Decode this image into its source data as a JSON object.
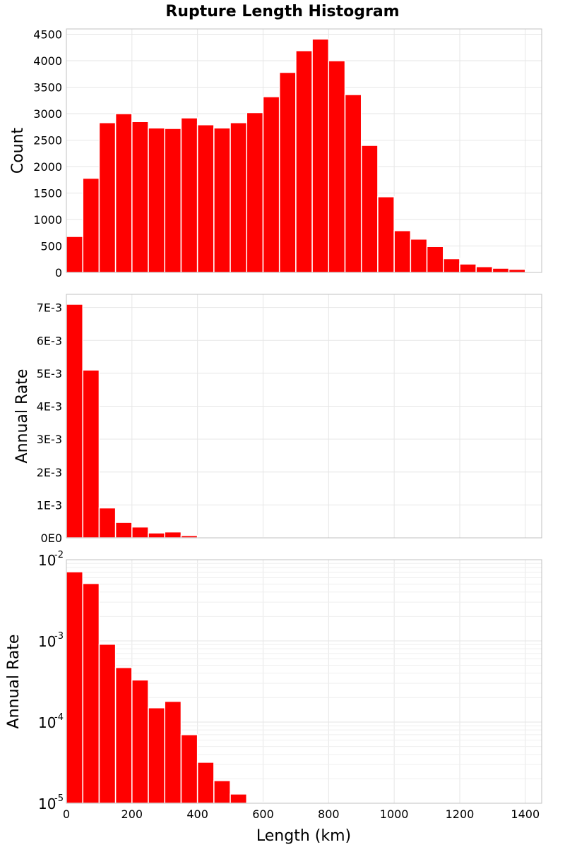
{
  "chart_data": [
    {
      "type": "bar",
      "scale": "linear",
      "title": "Rupture Length Histogram",
      "xlabel": "Length (km)",
      "ylabel": "Count",
      "bin_width": 50,
      "bin_starts": [
        0,
        50,
        100,
        150,
        200,
        250,
        300,
        350,
        400,
        450,
        500,
        550,
        600,
        650,
        700,
        750,
        800,
        850,
        900,
        950,
        1000,
        1050,
        1100,
        1150,
        1200,
        1250,
        1300,
        1350,
        1400
      ],
      "values": [
        680,
        1780,
        2830,
        3000,
        2850,
        2730,
        2720,
        2920,
        2790,
        2730,
        2830,
        3020,
        3320,
        3780,
        4190,
        4410,
        4000,
        3360,
        2400,
        1430,
        790,
        630,
        490,
        260,
        160,
        110,
        80,
        60,
        15
      ],
      "bar_color": "#ff0000",
      "xlim": [
        0,
        1450
      ],
      "ylim": [
        0,
        4600
      ],
      "xticks": [
        0,
        200,
        400,
        600,
        800,
        1000,
        1200,
        1400
      ],
      "yticks": [
        0,
        500,
        1000,
        1500,
        2000,
        2500,
        3000,
        3500,
        4000,
        4500
      ],
      "ytick_labels": [
        "0",
        "500",
        "1000",
        "1500",
        "2000",
        "2500",
        "3000",
        "3500",
        "4000",
        "4500"
      ],
      "grid": true
    },
    {
      "type": "bar",
      "scale": "linear",
      "xlabel": "Length (km)",
      "ylabel": "Annual Rate",
      "bin_width": 50,
      "bin_starts": [
        0,
        50,
        100,
        150,
        200,
        250,
        300,
        350,
        400,
        450,
        500,
        550
      ],
      "values": [
        0.0071,
        0.0051,
        0.00091,
        0.00047,
        0.00033,
        0.00015,
        0.00018,
        7e-05,
        3.2e-05,
        1.9e-05,
        1.3e-05,
        1.03e-05
      ],
      "bar_color": "#ff0000",
      "xlim": [
        0,
        1450
      ],
      "ylim": [
        0,
        0.0074
      ],
      "yticks": [
        0,
        0.001,
        0.002,
        0.003,
        0.004,
        0.005,
        0.006,
        0.007
      ],
      "ytick_labels": [
        "0E0",
        "1E-3",
        "2E-3",
        "3E-3",
        "4E-3",
        "5E-3",
        "6E-3",
        "7E-3"
      ],
      "grid": true
    },
    {
      "type": "bar",
      "scale": "log",
      "xlabel": "Length (km)",
      "ylabel": "Annual Rate",
      "bin_width": 50,
      "bin_starts": [
        0,
        50,
        100,
        150,
        200,
        250,
        300,
        350,
        400,
        450,
        500,
        550
      ],
      "values": [
        0.0071,
        0.0051,
        0.00091,
        0.00047,
        0.00033,
        0.00015,
        0.00018,
        7e-05,
        3.2e-05,
        1.9e-05,
        1.3e-05,
        1.03e-05
      ],
      "bar_color": "#ff0000",
      "xlim": [
        0,
        1450
      ],
      "ylim": [
        1e-05,
        0.01
      ],
      "ytick_exponents": [
        -2,
        -3,
        -4,
        -5
      ],
      "ytick_base": "10",
      "xticks": [
        0,
        200,
        400,
        600,
        800,
        1000,
        1200,
        1400
      ],
      "grid": true
    }
  ]
}
